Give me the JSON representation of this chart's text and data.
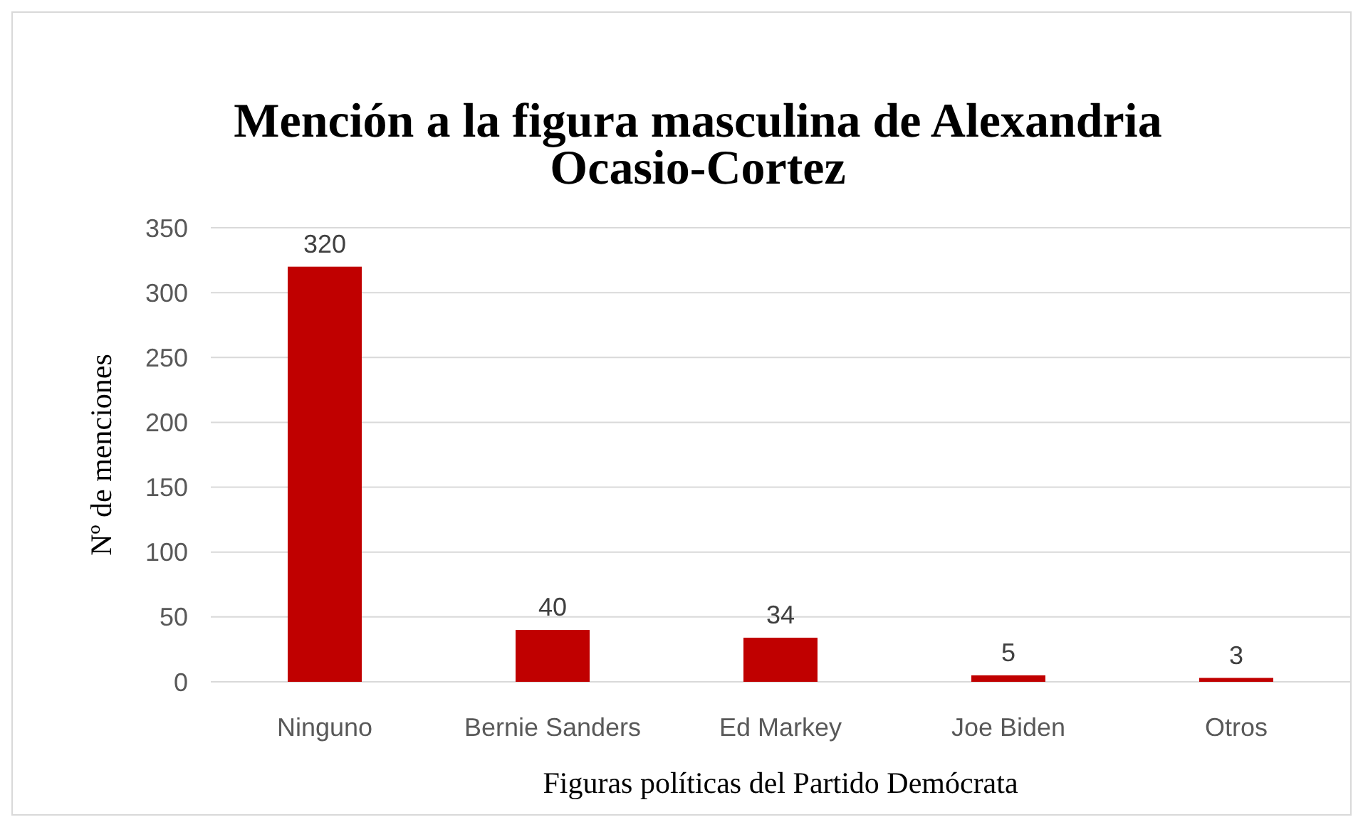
{
  "chart_data": {
    "type": "bar",
    "title": "Mención a la figura masculina de Alexandria Ocasio-Cortez",
    "xlabel": "Figuras políticas del Partido Demócrata",
    "ylabel": "Nº de menciones",
    "categories": [
      "Ninguno",
      "Bernie Sanders",
      "Ed Markey",
      "Joe Biden",
      "Otros"
    ],
    "values": [
      320,
      40,
      34,
      5,
      3
    ],
    "color": "#c00000",
    "ylim": [
      0,
      350
    ],
    "yticks": [
      0,
      50,
      100,
      150,
      200,
      250,
      300,
      350
    ],
    "grid": "y",
    "data_labels": true
  }
}
